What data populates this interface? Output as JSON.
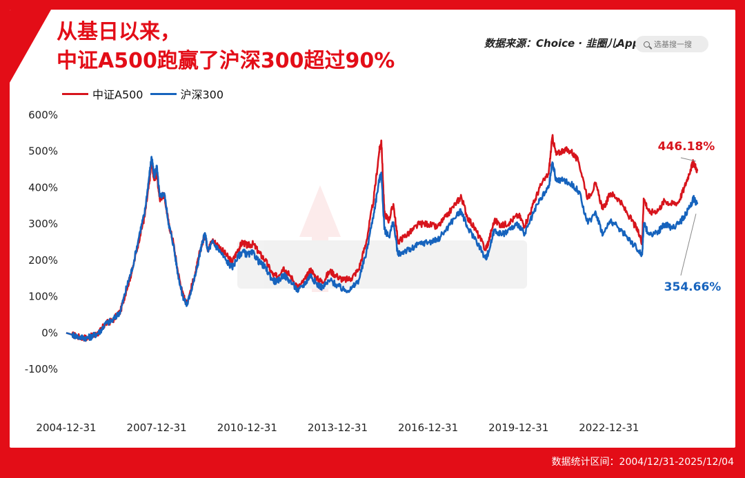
{
  "title": {
    "line1": "从基日以来，",
    "line2": "中证A500跑赢了沪深300超过90%"
  },
  "source_text": "数据来源：Choice · 韭圈儿App",
  "search": {
    "placeholder": "选基搜一搜",
    "icon": "search-icon"
  },
  "footer_text": "数据统计区间：2004/12/31-2025/12/04",
  "colors": {
    "frame": "#e30d17",
    "a500": "#d7141c",
    "hs300": "#1663bd"
  },
  "chart_data": {
    "type": "line",
    "title": "从基日以来，中证A500跑赢了沪深300超过90%",
    "xlabel": "",
    "ylabel": "",
    "ylim": [
      -100,
      600
    ],
    "y_ticks": [
      "-100%",
      "0%",
      "100%",
      "200%",
      "300%",
      "400%",
      "500%",
      "600%"
    ],
    "y_tick_values": [
      -100,
      0,
      100,
      200,
      300,
      400,
      500,
      600
    ],
    "x_ticks": [
      "2004-12-31",
      "2007-12-31",
      "2010-12-31",
      "2013-12-31",
      "2016-12-31",
      "2019-12-31",
      "2022-12-31"
    ],
    "x_tick_values": [
      2005.0,
      2008.0,
      2011.0,
      2014.0,
      2017.0,
      2020.0,
      2023.0
    ],
    "xlim": [
      2005.0,
      2026.0
    ],
    "legend_placement": "top-left",
    "grid": false,
    "series": [
      {
        "name": "中证A500",
        "color": "#d7141c",
        "end_label": "446.18%",
        "points": [
          [
            2005.0,
            0
          ],
          [
            2005.2,
            -5
          ],
          [
            2005.45,
            -12
          ],
          [
            2005.7,
            -14
          ],
          [
            2005.9,
            -8
          ],
          [
            2006.1,
            2
          ],
          [
            2006.3,
            25
          ],
          [
            2006.55,
            35
          ],
          [
            2006.8,
            60
          ],
          [
            2007.0,
            120
          ],
          [
            2007.2,
            175
          ],
          [
            2007.45,
            270
          ],
          [
            2007.6,
            320
          ],
          [
            2007.75,
            410
          ],
          [
            2007.83,
            470
          ],
          [
            2007.92,
            420
          ],
          [
            2008.0,
            440
          ],
          [
            2008.1,
            370
          ],
          [
            2008.25,
            380
          ],
          [
            2008.4,
            300
          ],
          [
            2008.55,
            250
          ],
          [
            2008.7,
            170
          ],
          [
            2008.85,
            110
          ],
          [
            2009.0,
            80
          ],
          [
            2009.1,
            110
          ],
          [
            2009.3,
            170
          ],
          [
            2009.45,
            230
          ],
          [
            2009.6,
            270
          ],
          [
            2009.7,
            230
          ],
          [
            2009.85,
            255
          ],
          [
            2010.05,
            240
          ],
          [
            2010.3,
            215
          ],
          [
            2010.5,
            195
          ],
          [
            2010.7,
            230
          ],
          [
            2010.85,
            250
          ],
          [
            2011.0,
            240
          ],
          [
            2011.2,
            245
          ],
          [
            2011.4,
            220
          ],
          [
            2011.6,
            200
          ],
          [
            2011.85,
            160
          ],
          [
            2012.0,
            155
          ],
          [
            2012.2,
            180
          ],
          [
            2012.4,
            160
          ],
          [
            2012.7,
            125
          ],
          [
            2012.95,
            150
          ],
          [
            2013.1,
            175
          ],
          [
            2013.3,
            150
          ],
          [
            2013.5,
            140
          ],
          [
            2013.75,
            170
          ],
          [
            2014.0,
            155
          ],
          [
            2014.2,
            145
          ],
          [
            2014.45,
            150
          ],
          [
            2014.7,
            175
          ],
          [
            2014.95,
            250
          ],
          [
            2015.2,
            370
          ],
          [
            2015.38,
            500
          ],
          [
            2015.45,
            530
          ],
          [
            2015.55,
            330
          ],
          [
            2015.7,
            310
          ],
          [
            2015.85,
            355
          ],
          [
            2016.0,
            250
          ],
          [
            2016.2,
            265
          ],
          [
            2016.45,
            280
          ],
          [
            2016.7,
            300
          ],
          [
            2017.0,
            300
          ],
          [
            2017.3,
            290
          ],
          [
            2017.6,
            320
          ],
          [
            2017.95,
            360
          ],
          [
            2018.1,
            375
          ],
          [
            2018.3,
            320
          ],
          [
            2018.6,
            280
          ],
          [
            2018.9,
            230
          ],
          [
            2019.0,
            250
          ],
          [
            2019.2,
            310
          ],
          [
            2019.45,
            295
          ],
          [
            2019.7,
            305
          ],
          [
            2020.0,
            325
          ],
          [
            2020.2,
            295
          ],
          [
            2020.45,
            345
          ],
          [
            2020.7,
            400
          ],
          [
            2021.0,
            440
          ],
          [
            2021.12,
            540
          ],
          [
            2021.25,
            490
          ],
          [
            2021.5,
            505
          ],
          [
            2021.75,
            500
          ],
          [
            2022.0,
            470
          ],
          [
            2022.3,
            370
          ],
          [
            2022.55,
            410
          ],
          [
            2022.8,
            340
          ],
          [
            2023.05,
            385
          ],
          [
            2023.3,
            370
          ],
          [
            2023.6,
            330
          ],
          [
            2023.9,
            290
          ],
          [
            2024.1,
            250
          ],
          [
            2024.15,
            370
          ],
          [
            2024.35,
            330
          ],
          [
            2024.65,
            340
          ],
          [
            2024.85,
            365
          ],
          [
            2025.05,
            355
          ],
          [
            2025.3,
            360
          ],
          [
            2025.5,
            400
          ],
          [
            2025.7,
            450
          ],
          [
            2025.8,
            470
          ],
          [
            2025.93,
            446.18
          ]
        ]
      },
      {
        "name": "沪深300",
        "color": "#1663bd",
        "end_label": "354.66%",
        "points": [
          [
            2005.0,
            0
          ],
          [
            2005.2,
            -5
          ],
          [
            2005.45,
            -12
          ],
          [
            2005.7,
            -14
          ],
          [
            2005.9,
            -8
          ],
          [
            2006.1,
            2
          ],
          [
            2006.3,
            25
          ],
          [
            2006.55,
            35
          ],
          [
            2006.8,
            60
          ],
          [
            2007.0,
            125
          ],
          [
            2007.2,
            180
          ],
          [
            2007.45,
            280
          ],
          [
            2007.6,
            330
          ],
          [
            2007.75,
            430
          ],
          [
            2007.83,
            485
          ],
          [
            2007.92,
            430
          ],
          [
            2008.0,
            460
          ],
          [
            2008.1,
            375
          ],
          [
            2008.25,
            385
          ],
          [
            2008.4,
            300
          ],
          [
            2008.55,
            245
          ],
          [
            2008.7,
            165
          ],
          [
            2008.85,
            105
          ],
          [
            2009.0,
            75
          ],
          [
            2009.1,
            105
          ],
          [
            2009.3,
            165
          ],
          [
            2009.45,
            225
          ],
          [
            2009.6,
            275
          ],
          [
            2009.7,
            225
          ],
          [
            2009.85,
            250
          ],
          [
            2010.05,
            230
          ],
          [
            2010.3,
            200
          ],
          [
            2010.5,
            180
          ],
          [
            2010.7,
            210
          ],
          [
            2010.85,
            225
          ],
          [
            2011.0,
            215
          ],
          [
            2011.2,
            220
          ],
          [
            2011.4,
            195
          ],
          [
            2011.6,
            180
          ],
          [
            2011.85,
            145
          ],
          [
            2012.0,
            140
          ],
          [
            2012.2,
            160
          ],
          [
            2012.4,
            145
          ],
          [
            2012.7,
            115
          ],
          [
            2012.95,
            140
          ],
          [
            2013.1,
            160
          ],
          [
            2013.3,
            135
          ],
          [
            2013.5,
            125
          ],
          [
            2013.75,
            145
          ],
          [
            2014.0,
            130
          ],
          [
            2014.2,
            118
          ],
          [
            2014.45,
            120
          ],
          [
            2014.7,
            145
          ],
          [
            2014.95,
            220
          ],
          [
            2015.2,
            330
          ],
          [
            2015.38,
            420
          ],
          [
            2015.45,
            440
          ],
          [
            2015.55,
            285
          ],
          [
            2015.7,
            265
          ],
          [
            2015.85,
            305
          ],
          [
            2016.0,
            215
          ],
          [
            2016.2,
            225
          ],
          [
            2016.45,
            230
          ],
          [
            2016.7,
            245
          ],
          [
            2017.0,
            250
          ],
          [
            2017.3,
            255
          ],
          [
            2017.6,
            285
          ],
          [
            2017.95,
            325
          ],
          [
            2018.1,
            335
          ],
          [
            2018.3,
            290
          ],
          [
            2018.6,
            255
          ],
          [
            2018.9,
            205
          ],
          [
            2019.0,
            220
          ],
          [
            2019.2,
            285
          ],
          [
            2019.45,
            270
          ],
          [
            2019.7,
            285
          ],
          [
            2020.0,
            300
          ],
          [
            2020.2,
            270
          ],
          [
            2020.45,
            320
          ],
          [
            2020.7,
            365
          ],
          [
            2021.0,
            400
          ],
          [
            2021.12,
            470
          ],
          [
            2021.25,
            420
          ],
          [
            2021.5,
            420
          ],
          [
            2021.75,
            410
          ],
          [
            2022.0,
            390
          ],
          [
            2022.3,
            300
          ],
          [
            2022.55,
            335
          ],
          [
            2022.8,
            270
          ],
          [
            2023.05,
            310
          ],
          [
            2023.3,
            290
          ],
          [
            2023.6,
            265
          ],
          [
            2023.9,
            235
          ],
          [
            2024.1,
            215
          ],
          [
            2024.15,
            300
          ],
          [
            2024.35,
            270
          ],
          [
            2024.65,
            280
          ],
          [
            2024.85,
            300
          ],
          [
            2025.05,
            290
          ],
          [
            2025.3,
            300
          ],
          [
            2025.5,
            320
          ],
          [
            2025.7,
            350
          ],
          [
            2025.8,
            370
          ],
          [
            2025.93,
            354.66
          ]
        ]
      }
    ]
  }
}
